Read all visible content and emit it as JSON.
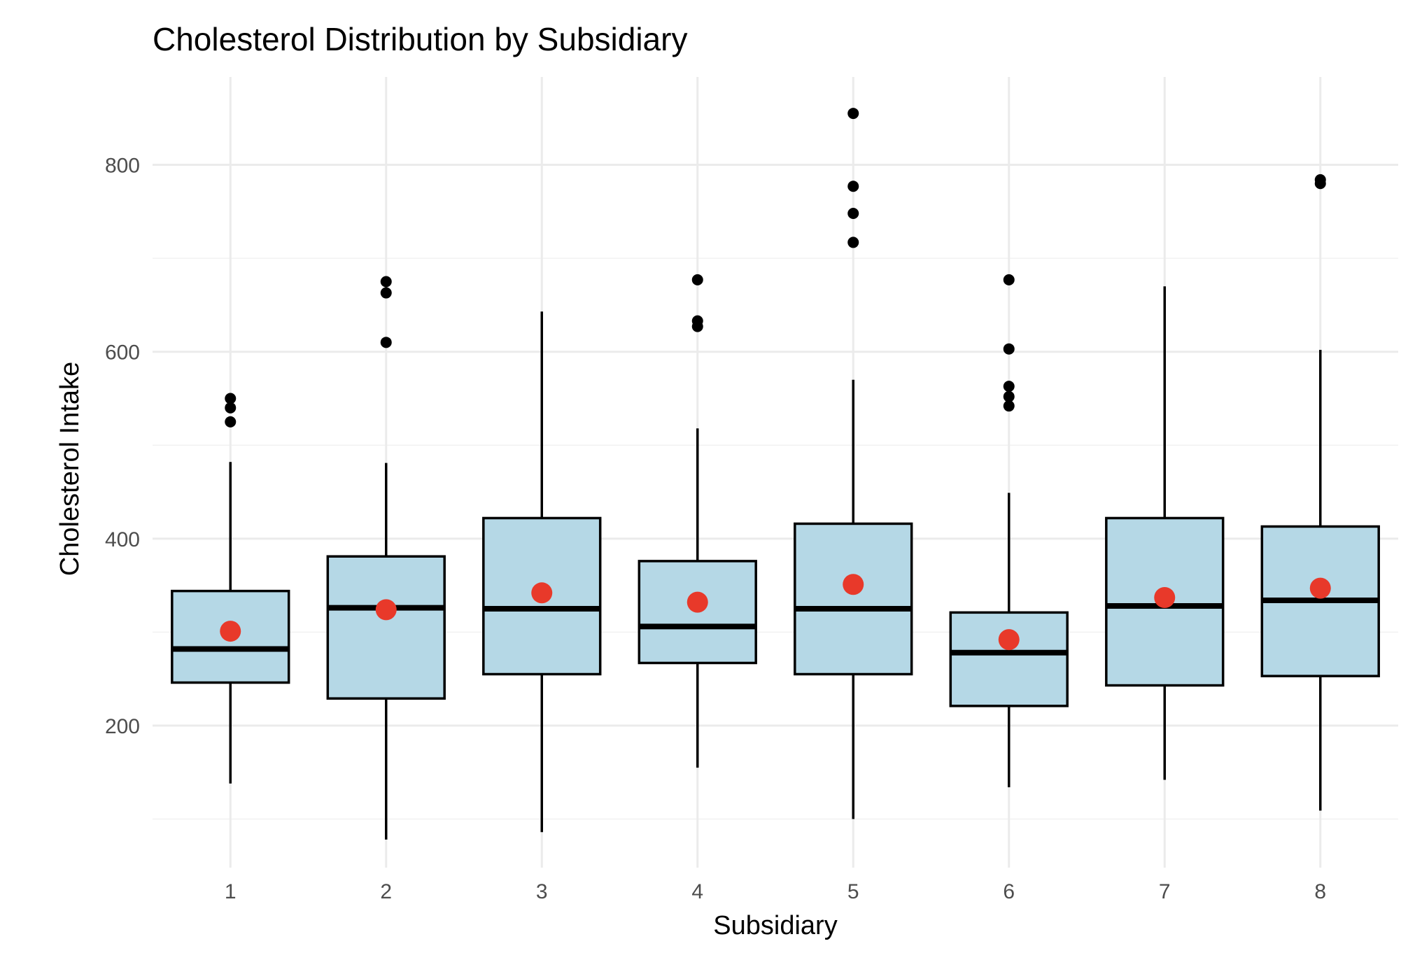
{
  "chart_data": {
    "type": "boxplot",
    "title": "Cholesterol Distribution by Subsidiary",
    "xlabel": "Subsidiary",
    "ylabel": "Cholesterol Intake",
    "categories": [
      "1",
      "2",
      "3",
      "4",
      "5",
      "6",
      "7",
      "8"
    ],
    "ylim": [
      48,
      894
    ],
    "y_ticks": [
      200,
      400,
      600,
      800
    ],
    "y_tick_labels": [
      "200",
      "400",
      "600",
      "800"
    ],
    "y_minor_ticks": [
      100,
      300,
      500,
      700
    ],
    "grid": true,
    "box_fill": "#b5d8e6",
    "mean_color": "#e8392a",
    "boxes": [
      {
        "category": "1",
        "whisker_low": 138,
        "q1": 246,
        "median": 282,
        "q3": 344,
        "whisker_high": 482,
        "mean": 301,
        "outliers": [
          525,
          540,
          550
        ]
      },
      {
        "category": "2",
        "whisker_low": 78,
        "q1": 229,
        "median": 326,
        "q3": 381,
        "whisker_high": 481,
        "mean": 324,
        "outliers": [
          610,
          663,
          675
        ]
      },
      {
        "category": "3",
        "whisker_low": 86,
        "q1": 255,
        "median": 325,
        "q3": 422,
        "whisker_high": 643,
        "mean": 342,
        "outliers": []
      },
      {
        "category": "4",
        "whisker_low": 155,
        "q1": 267,
        "median": 306,
        "q3": 376,
        "whisker_high": 518,
        "mean": 332,
        "outliers": [
          627,
          633,
          677
        ]
      },
      {
        "category": "5",
        "whisker_low": 100,
        "q1": 255,
        "median": 325,
        "q3": 416,
        "whisker_high": 570,
        "mean": 351,
        "outliers": [
          717,
          748,
          777,
          855
        ]
      },
      {
        "category": "6",
        "whisker_low": 134,
        "q1": 221,
        "median": 278,
        "q3": 321,
        "whisker_high": 449,
        "mean": 292,
        "outliers": [
          542,
          552,
          563,
          603,
          677
        ]
      },
      {
        "category": "7",
        "whisker_low": 142,
        "q1": 243,
        "median": 328,
        "q3": 422,
        "whisker_high": 670,
        "mean": 337,
        "outliers": []
      },
      {
        "category": "8",
        "whisker_low": 109,
        "q1": 253,
        "median": 334,
        "q3": 413,
        "whisker_high": 602,
        "mean": 347,
        "outliers": [
          780,
          784
        ]
      }
    ]
  }
}
